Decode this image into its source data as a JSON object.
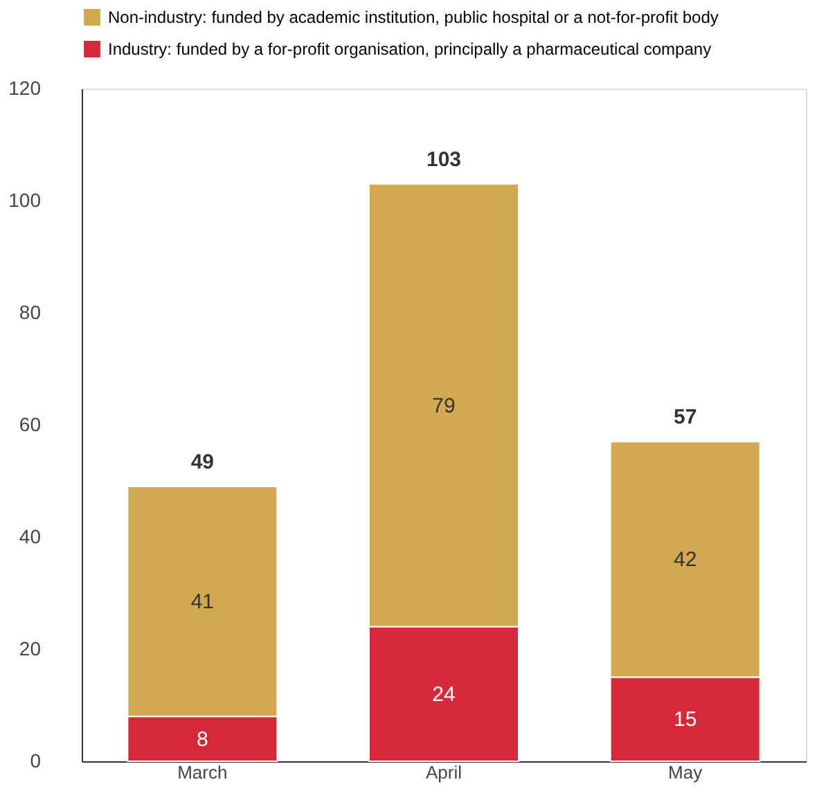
{
  "chart_data": {
    "type": "bar",
    "stacked": true,
    "categories": [
      "March",
      "April",
      "May"
    ],
    "series": [
      {
        "name": "Industry: funded by a for-profit organisation, principally a pharmaceutical company",
        "color": "#d7283a",
        "values": [
          8,
          24,
          15
        ]
      },
      {
        "name": "Non-industry: funded by academic institution, public hospital or a not-for-profit body",
        "color": "#d2a950",
        "values": [
          41,
          79,
          42
        ]
      }
    ],
    "totals": [
      "49",
      "103",
      "57"
    ],
    "data_labels": true,
    "ylim": [
      0,
      120
    ],
    "yticks": [
      0,
      20,
      40,
      60,
      80,
      100,
      120
    ],
    "grid": false,
    "legend": "top"
  }
}
